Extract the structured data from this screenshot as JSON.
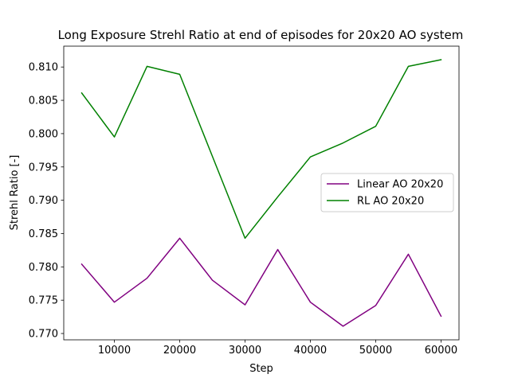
{
  "chart_data": {
    "type": "line",
    "title": "Long Exposure Strehl Ratio at end of episodes for 20x20 AO system",
    "xlabel": "Step",
    "ylabel": "Strehl Ratio [-]",
    "x": [
      5000,
      10000,
      15000,
      20000,
      25000,
      30000,
      35000,
      40000,
      45000,
      50000,
      55000,
      60000
    ],
    "xlim": [
      2250,
      62750
    ],
    "ylim": [
      0.76905,
      0.81313
    ],
    "xticks": [
      10000,
      20000,
      30000,
      40000,
      50000,
      60000
    ],
    "xtick_labels": [
      "10000",
      "20000",
      "30000",
      "40000",
      "50000",
      "60000"
    ],
    "yticks": [
      0.77,
      0.775,
      0.78,
      0.785,
      0.79,
      0.795,
      0.8,
      0.805,
      0.81
    ],
    "ytick_labels": [
      "0.770",
      "0.775",
      "0.780",
      "0.785",
      "0.790",
      "0.795",
      "0.800",
      "0.805",
      "0.810"
    ],
    "grid": false,
    "legend_position": "center-right",
    "series": [
      {
        "name": "Linear AO 20x20",
        "color": "#800080",
        "values": [
          0.7804,
          0.7747,
          0.7783,
          0.7843,
          0.778,
          0.7743,
          0.7826,
          0.7747,
          0.7711,
          0.7742,
          0.7819,
          0.7726
        ]
      },
      {
        "name": "RL AO 20x20",
        "color": "#008000",
        "values": [
          0.8061,
          0.7995,
          0.8101,
          0.8089,
          0.7966,
          0.7843,
          0.7905,
          0.7965,
          0.7986,
          0.8011,
          0.8101,
          0.8111
        ]
      }
    ]
  }
}
